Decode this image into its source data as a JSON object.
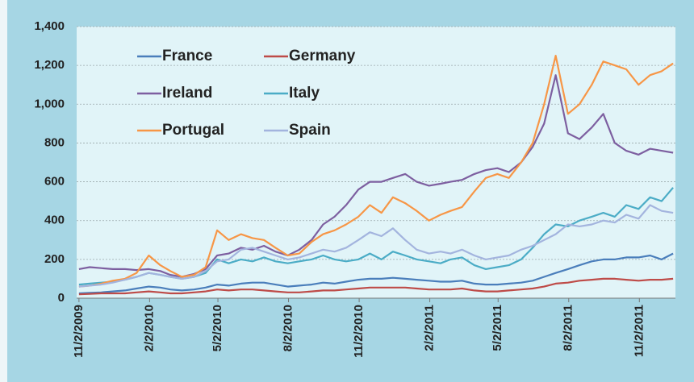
{
  "chart_data": {
    "type": "line",
    "x": [
      "11/2/2009",
      "11/16/2009",
      "12/1/2009",
      "12/16/2009",
      "1/1/2010",
      "1/16/2010",
      "2/1/2010",
      "2/16/2010",
      "3/1/2010",
      "3/16/2010",
      "4/1/2010",
      "4/16/2010",
      "5/1/2010",
      "5/16/2010",
      "6/1/2010",
      "6/16/2010",
      "7/1/2010",
      "7/16/2010",
      "8/1/2010",
      "8/16/2010",
      "9/1/2010",
      "9/16/2010",
      "10/1/2010",
      "10/16/2010",
      "11/1/2010",
      "11/16/2010",
      "12/1/2010",
      "12/16/2010",
      "1/1/2011",
      "1/16/2011",
      "2/1/2011",
      "2/16/2011",
      "3/1/2011",
      "3/16/2011",
      "4/1/2011",
      "4/16/2011",
      "5/1/2011",
      "5/16/2011",
      "6/1/2011",
      "6/16/2011",
      "7/1/2011",
      "7/16/2011",
      "8/1/2011",
      "8/16/2011",
      "9/1/2011",
      "9/16/2011",
      "10/1/2011",
      "10/16/2011",
      "11/1/2011",
      "11/16/2011",
      "12/1/2011",
      "12/16/2011"
    ],
    "series": [
      {
        "name": "France",
        "color": "#4a7ebb",
        "values": [
          25,
          28,
          30,
          35,
          40,
          50,
          60,
          55,
          45,
          40,
          45,
          55,
          70,
          65,
          75,
          80,
          80,
          70,
          60,
          65,
          70,
          80,
          75,
          85,
          95,
          100,
          100,
          105,
          100,
          95,
          90,
          85,
          85,
          90,
          75,
          70,
          70,
          75,
          80,
          90,
          110,
          130,
          150,
          170,
          190,
          200,
          200,
          210,
          210,
          220,
          200,
          230
        ]
      },
      {
        "name": "Germany",
        "color": "#be4b48",
        "values": [
          20,
          22,
          25,
          25,
          25,
          30,
          35,
          30,
          25,
          25,
          30,
          35,
          45,
          40,
          45,
          45,
          40,
          35,
          30,
          30,
          35,
          40,
          40,
          45,
          50,
          55,
          55,
          55,
          55,
          50,
          45,
          45,
          45,
          50,
          40,
          35,
          35,
          40,
          45,
          50,
          60,
          75,
          80,
          90,
          95,
          100,
          100,
          95,
          90,
          95,
          95,
          100
        ]
      },
      {
        "name": "Ireland",
        "color": "#7d5fa0",
        "values": [
          150,
          160,
          155,
          150,
          150,
          145,
          150,
          140,
          120,
          110,
          125,
          150,
          220,
          230,
          260,
          250,
          270,
          240,
          220,
          250,
          300,
          380,
          420,
          480,
          560,
          600,
          600,
          620,
          640,
          600,
          580,
          590,
          600,
          610,
          640,
          660,
          670,
          650,
          700,
          780,
          900,
          1150,
          850,
          820,
          880,
          950,
          800,
          760,
          740,
          770,
          760,
          750
        ]
      },
      {
        "name": "Italy",
        "color": "#4bacc6",
        "values": [
          70,
          75,
          80,
          85,
          95,
          110,
          130,
          120,
          110,
          100,
          110,
          130,
          200,
          180,
          200,
          190,
          210,
          190,
          180,
          190,
          200,
          220,
          200,
          190,
          200,
          230,
          200,
          240,
          220,
          200,
          190,
          180,
          200,
          210,
          170,
          150,
          160,
          170,
          200,
          260,
          330,
          380,
          370,
          400,
          420,
          440,
          420,
          480,
          460,
          520,
          500,
          570
        ]
      },
      {
        "name": "Portugal",
        "color": "#f79646",
        "values": [
          60,
          65,
          75,
          90,
          100,
          130,
          220,
          170,
          140,
          110,
          120,
          160,
          350,
          300,
          330,
          310,
          300,
          260,
          220,
          230,
          290,
          330,
          350,
          380,
          420,
          480,
          440,
          520,
          490,
          450,
          400,
          430,
          450,
          470,
          550,
          620,
          640,
          620,
          700,
          800,
          1000,
          1250,
          950,
          1000,
          1100,
          1220,
          1200,
          1180,
          1100,
          1150,
          1170,
          1210
        ]
      },
      {
        "name": "Spain",
        "color": "#a3b4de",
        "values": [
          60,
          65,
          70,
          80,
          95,
          110,
          130,
          120,
          110,
          100,
          110,
          140,
          190,
          200,
          250,
          260,
          240,
          220,
          200,
          210,
          230,
          250,
          240,
          260,
          300,
          340,
          320,
          360,
          300,
          250,
          230,
          240,
          230,
          250,
          220,
          200,
          210,
          220,
          250,
          270,
          300,
          330,
          380,
          370,
          380,
          400,
          390,
          430,
          410,
          480,
          450,
          440
        ]
      }
    ],
    "xlim": [
      "10/30/2009",
      "12/19/2011"
    ],
    "xticks": [
      "11/2/2009",
      "2/2/2010",
      "5/2/2010",
      "8/2/2010",
      "11/2/2010",
      "2/2/2011",
      "5/2/2011",
      "8/2/2011",
      "11/2/2011"
    ],
    "ylim": [
      0,
      1400
    ],
    "yticks": [
      0,
      200,
      400,
      600,
      800,
      {
        "value": 1000,
        "label": "1,000"
      },
      {
        "value": 1200,
        "label": "1,200"
      },
      {
        "value": 1400,
        "label": "1,400"
      }
    ],
    "grid": true
  }
}
